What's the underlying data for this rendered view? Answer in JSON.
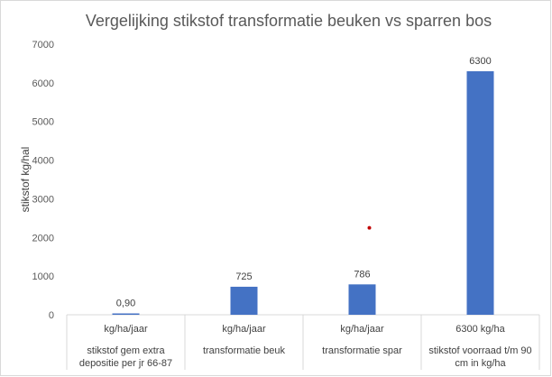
{
  "chart_data": {
    "type": "bar",
    "title": "Vergelijking stikstof transformatie beuken vs sparren bos",
    "ylabel": "stikstof kg/hal",
    "xlabel": "",
    "ylim": [
      0,
      7000
    ],
    "yticks": [
      0,
      1000,
      2000,
      3000,
      4000,
      5000,
      6000,
      7000
    ],
    "grid": false,
    "legend": "none",
    "bar_color": "#4472c4",
    "categories": [
      {
        "top": "kg/ha/jaar",
        "bottom": [
          "stikstof gem extra",
          "depositie per jr 66-87"
        ]
      },
      {
        "top": "kg/ha/jaar",
        "bottom": [
          "transformatie beuk"
        ]
      },
      {
        "top": "kg/ha/jaar",
        "bottom": [
          "transformatie spar"
        ]
      },
      {
        "top": "6300 kg/ha",
        "bottom": [
          "stikstof voorraad t/m 90",
          "cm in kg/ha"
        ]
      }
    ],
    "values": [
      0.9,
      725,
      786,
      6300
    ],
    "data_labels": [
      "0,90",
      "725",
      "786",
      "6300"
    ],
    "annotations": [
      {
        "type": "point",
        "x_category_index": 2,
        "y": 2250,
        "color": "#c00000"
      }
    ]
  }
}
